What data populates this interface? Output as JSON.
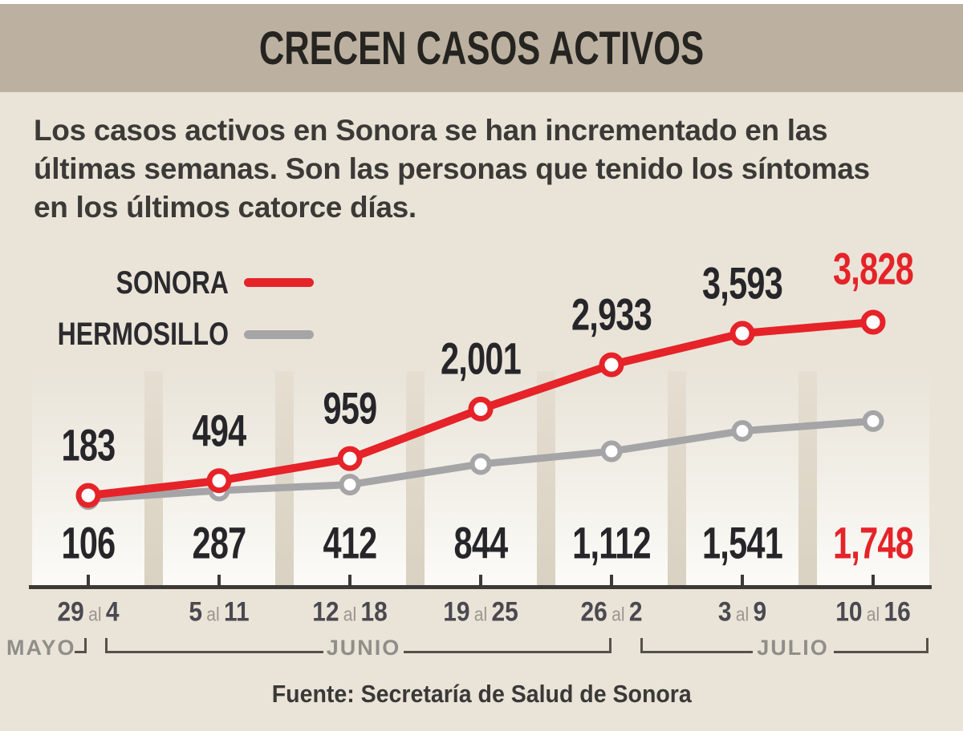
{
  "title": "CRECEN CASOS ACTIVOS",
  "description": {
    "lines": [
      "Los casos activos en Sonora se han incrementado en las",
      "últimas semanas. Son las personas que tenido los síntomas",
      "en los últimos catorce días."
    ]
  },
  "legend": {
    "items": [
      {
        "label": "SONORA",
        "color": "#e52329"
      },
      {
        "label": "HERMOSILLO",
        "color": "#a5a5a7"
      }
    ]
  },
  "chart_data": {
    "type": "line",
    "categories": [
      "29 al 4",
      "5 al 11",
      "12 al 18",
      "19 al 25",
      "26 al 2",
      "3 al 9",
      "10 al 16"
    ],
    "series": [
      {
        "name": "SONORA",
        "color": "#e52329",
        "values": [
          183,
          494,
          959,
          2001,
          2933,
          3593,
          3828
        ]
      },
      {
        "name": "HERMOSILLO",
        "color": "#a5a5a7",
        "values": [
          106,
          287,
          412,
          844,
          1112,
          1541,
          1748
        ]
      }
    ],
    "months": [
      {
        "label": "MAYO"
      },
      {
        "label": "JUNIO"
      },
      {
        "label": "JULIO"
      }
    ],
    "ylim": [
      0,
      4000
    ],
    "grid": false,
    "legend_position": "top-left",
    "highlight_last_column": true,
    "highlight_color": "#e52329",
    "number_format": "thousands-comma"
  },
  "source": "Fuente: Secretaría de Salud de Sonora",
  "colors": {
    "background": "#eae4d8",
    "title_bar": "#bcb1a0",
    "column_band_top": "#e9e4d9",
    "column_band_bottom": "#fcfbf8",
    "column_gap": "#d9d1c1",
    "axis": "#3c3a36",
    "value_label": "#26262a",
    "tick_label": "#4a4950",
    "tick_label_al": "#9a958f",
    "month_text": "#908e89",
    "bracket": "#55514b",
    "sonora": "#e52329",
    "hermosillo": "#a5a5a7"
  }
}
